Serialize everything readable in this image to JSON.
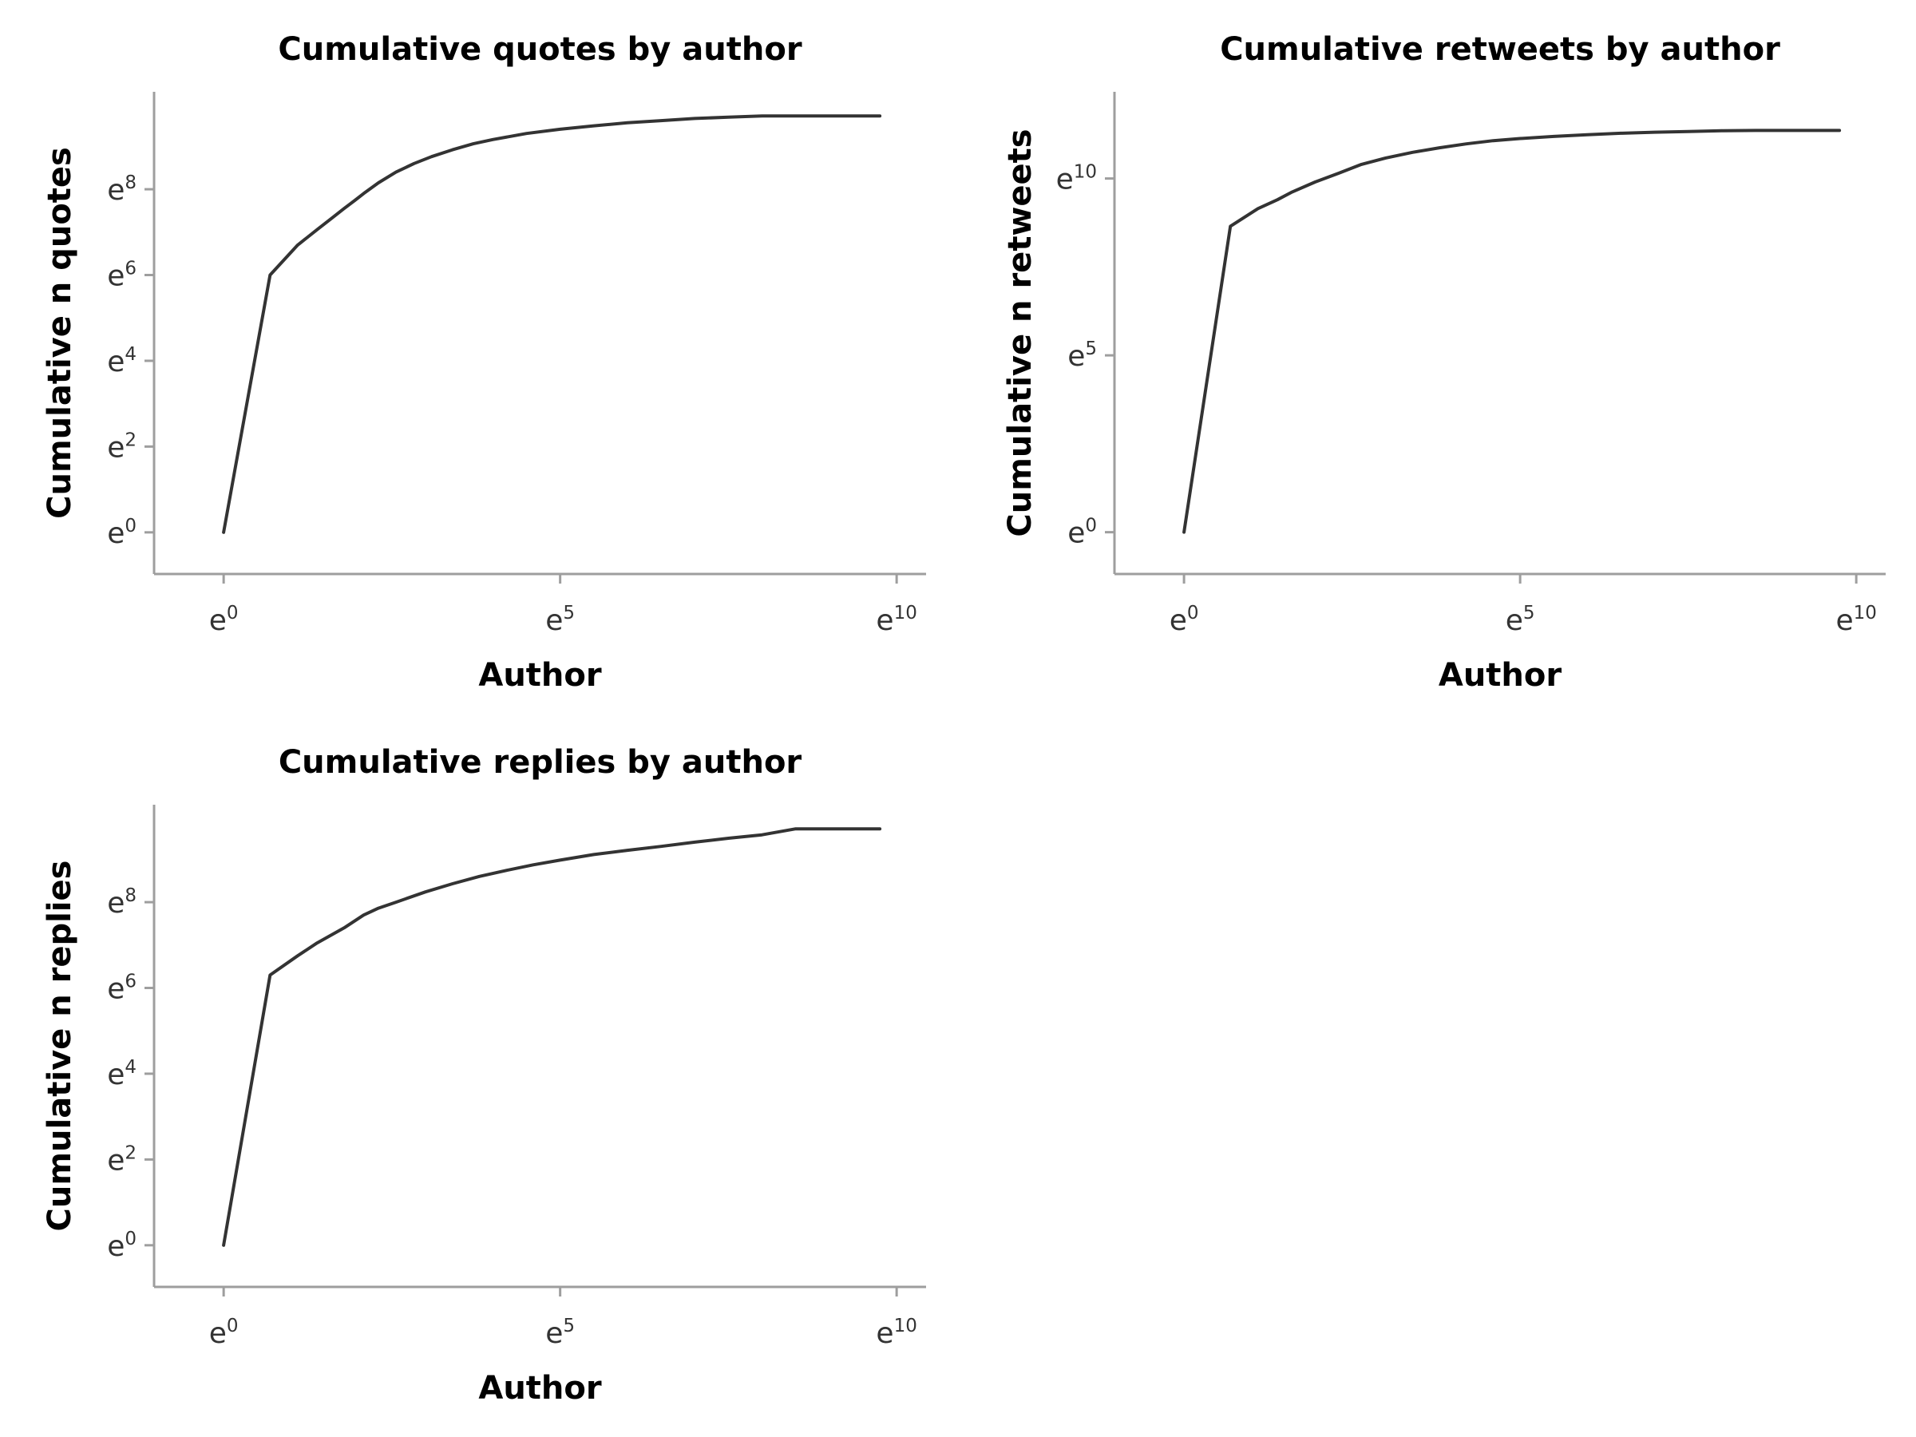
{
  "chart_data": [
    {
      "type": "line",
      "title": "Cumulative quotes by author",
      "xlabel": "Author",
      "ylabel": "Cumulative n quotes",
      "xscale": "log",
      "yscale": "log",
      "xlim_ln": [
        -0.5,
        10.2
      ],
      "ylim_ln": [
        -0.45,
        9.9
      ],
      "xticks": [
        {
          "base": "e",
          "exp": "0",
          "ln": 0
        },
        {
          "base": "e",
          "exp": "5",
          "ln": 5
        },
        {
          "base": "e",
          "exp": "10",
          "ln": 10
        }
      ],
      "yticks": [
        {
          "base": "e",
          "exp": "0",
          "ln": 0
        },
        {
          "base": "e",
          "exp": "2",
          "ln": 2
        },
        {
          "base": "e",
          "exp": "4",
          "ln": 4
        },
        {
          "base": "e",
          "exp": "6",
          "ln": 6
        },
        {
          "base": "e",
          "exp": "8",
          "ln": 8
        }
      ],
      "series": [
        {
          "ln_x": [
            0,
            0.69,
            1.1,
            1.39,
            1.61,
            1.79,
            1.95,
            2.08,
            2.3,
            2.56,
            2.83,
            3.09,
            3.4,
            3.71,
            4.0,
            4.5,
            5.0,
            5.5,
            6.0,
            6.5,
            7.0,
            7.5,
            8.0,
            8.5,
            9.0,
            9.5,
            9.75
          ],
          "ln_y": [
            0,
            6.0,
            6.7,
            7.06,
            7.33,
            7.55,
            7.74,
            7.9,
            8.15,
            8.4,
            8.6,
            8.76,
            8.92,
            9.06,
            9.16,
            9.3,
            9.4,
            9.48,
            9.55,
            9.6,
            9.65,
            9.68,
            9.71,
            9.71,
            9.71,
            9.71,
            9.71
          ]
        }
      ]
    },
    {
      "type": "line",
      "title": "Cumulative retweets by author",
      "xlabel": "Author",
      "ylabel": "Cumulative n retweets",
      "xscale": "log",
      "yscale": "log",
      "xlim_ln": [
        -0.5,
        10.2
      ],
      "ylim_ln": [
        -0.55,
        12.0
      ],
      "xticks": [
        {
          "base": "e",
          "exp": "0",
          "ln": 0
        },
        {
          "base": "e",
          "exp": "5",
          "ln": 5
        },
        {
          "base": "e",
          "exp": "10",
          "ln": 10
        }
      ],
      "yticks": [
        {
          "base": "e",
          "exp": "0",
          "ln": 0
        },
        {
          "base": "e",
          "exp": "5",
          "ln": 5
        },
        {
          "base": "e",
          "exp": "10",
          "ln": 10
        }
      ],
      "series": [
        {
          "ln_x": [
            0,
            0.69,
            1.1,
            1.39,
            1.61,
            1.95,
            2.3,
            2.64,
            3.0,
            3.4,
            3.8,
            4.2,
            4.6,
            5.0,
            5.5,
            6.0,
            6.5,
            7.0,
            7.5,
            8.0,
            8.5,
            9.0,
            9.5,
            9.75
          ],
          "ln_y": [
            0,
            8.65,
            9.15,
            9.4,
            9.62,
            9.9,
            10.15,
            10.4,
            10.58,
            10.74,
            10.87,
            10.98,
            11.07,
            11.13,
            11.19,
            11.24,
            11.28,
            11.31,
            11.33,
            11.35,
            11.36,
            11.36,
            11.36,
            11.36
          ]
        }
      ]
    },
    {
      "type": "line",
      "title": "Cumulative replies by author",
      "xlabel": "Author",
      "ylabel": "Cumulative n replies",
      "xscale": "log",
      "yscale": "log",
      "xlim_ln": [
        -0.5,
        10.2
      ],
      "ylim_ln": [
        -0.45,
        9.9
      ],
      "xticks": [
        {
          "base": "e",
          "exp": "0",
          "ln": 0
        },
        {
          "base": "e",
          "exp": "5",
          "ln": 5
        },
        {
          "base": "e",
          "exp": "10",
          "ln": 10
        }
      ],
      "yticks": [
        {
          "base": "e",
          "exp": "0",
          "ln": 0
        },
        {
          "base": "e",
          "exp": "2",
          "ln": 2
        },
        {
          "base": "e",
          "exp": "4",
          "ln": 4
        },
        {
          "base": "e",
          "exp": "6",
          "ln": 6
        },
        {
          "base": "e",
          "exp": "8",
          "ln": 8
        }
      ],
      "series": [
        {
          "ln_x": [
            0,
            0.69,
            1.1,
            1.39,
            1.79,
            2.08,
            2.3,
            2.56,
            3.0,
            3.4,
            3.8,
            4.2,
            4.6,
            5.0,
            5.5,
            6.0,
            6.5,
            7.0,
            7.5,
            8.0,
            8.5,
            9.0,
            9.5,
            9.75
          ],
          "ln_y": [
            0,
            6.3,
            6.75,
            7.05,
            7.4,
            7.7,
            7.86,
            8.0,
            8.24,
            8.43,
            8.6,
            8.74,
            8.87,
            8.98,
            9.11,
            9.21,
            9.3,
            9.4,
            9.49,
            9.57,
            9.71,
            9.71,
            9.71,
            9.71
          ]
        }
      ]
    }
  ]
}
